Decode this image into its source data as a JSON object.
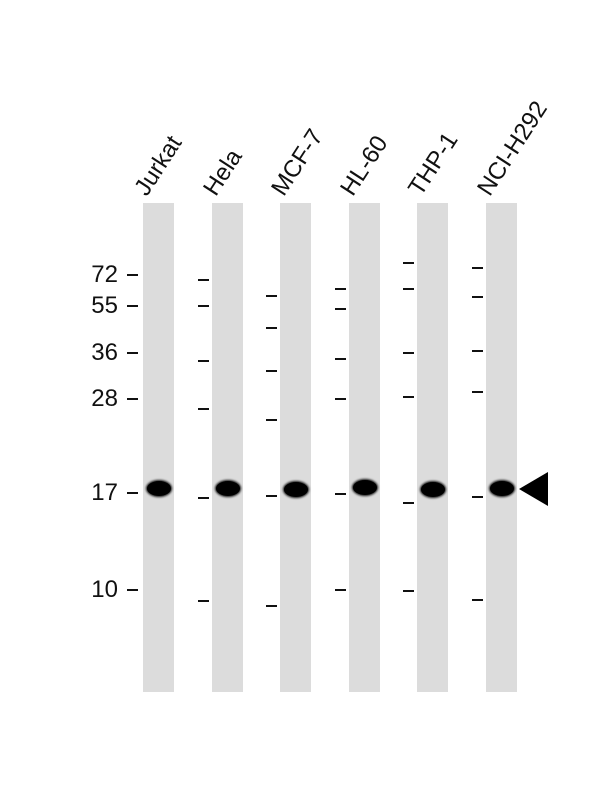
{
  "lanes": [
    {
      "label": "Jurkat",
      "band_kda": 17
    },
    {
      "label": "Hela",
      "band_kda": 17
    },
    {
      "label": "MCF-7",
      "band_kda": 17
    },
    {
      "label": "HL-60",
      "band_kda": 17
    },
    {
      "label": "THP-1",
      "band_kda": 17
    },
    {
      "label": "NCI-H292",
      "band_kda": 17
    }
  ],
  "mw_markers": [
    "72",
    "55",
    "36",
    "28",
    "17",
    "10"
  ],
  "arrow_icon": "triangle-left",
  "colors": {
    "lane": "#dcdcdc",
    "band": "#000000"
  }
}
